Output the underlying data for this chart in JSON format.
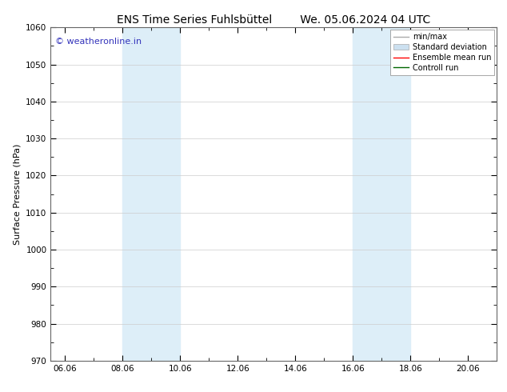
{
  "title_left": "ENS Time Series Fuhlsbüttel",
  "title_right": "We. 05.06.2024 04 UTC",
  "ylabel": "Surface Pressure (hPa)",
  "ylim": [
    970,
    1060
  ],
  "yticks": [
    970,
    980,
    990,
    1000,
    1010,
    1020,
    1030,
    1040,
    1050,
    1060
  ],
  "xlim_start": 5.5,
  "xlim_end": 21.0,
  "xtick_labels": [
    "06.06",
    "08.06",
    "10.06",
    "12.06",
    "14.06",
    "16.06",
    "18.06",
    "20.06"
  ],
  "xtick_positions": [
    6.0,
    8.0,
    10.0,
    12.0,
    14.0,
    16.0,
    18.0,
    20.0
  ],
  "shaded_bands": [
    {
      "x_start": 8.0,
      "x_end": 10.0
    },
    {
      "x_start": 16.0,
      "x_end": 18.0
    }
  ],
  "shaded_color": "#ddeef8",
  "background_color": "#ffffff",
  "watermark_text": "© weatheronline.in",
  "watermark_color": "#3333bb",
  "legend_items": [
    {
      "label": "min/max",
      "color": "#aaaaaa",
      "linestyle": "-",
      "linewidth": 1
    },
    {
      "label": "Standard deviation",
      "color": "#cce0f0",
      "linestyle": "-",
      "linewidth": 6
    },
    {
      "label": "Ensemble mean run",
      "color": "#ff0000",
      "linestyle": "-",
      "linewidth": 1
    },
    {
      "label": "Controll run",
      "color": "#006600",
      "linestyle": "-",
      "linewidth": 1
    }
  ],
  "font_family": "DejaVu Sans",
  "title_fontsize": 10,
  "axis_label_fontsize": 8,
  "tick_fontsize": 7.5,
  "watermark_fontsize": 8,
  "legend_fontsize": 7
}
